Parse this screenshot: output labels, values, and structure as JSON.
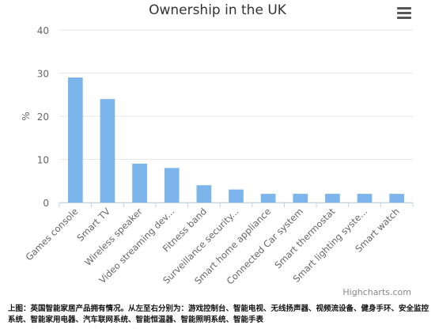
{
  "chart_data": {
    "type": "bar",
    "title": "Ownership in the UK",
    "ylabel": "%",
    "xlabel": "",
    "ylim": [
      0,
      40
    ],
    "yticks": [
      0,
      10,
      20,
      30,
      40
    ],
    "grid": true,
    "legend": "none",
    "color": "#7cb5ec",
    "categories": [
      "Games console",
      "Smart TV",
      "Wireless speaker",
      "Video streaming dev...",
      "Fitness band",
      "Surveillance security...",
      "Smart home appliance",
      "Connected Car system",
      "Smart thermostat",
      "Smart lighting syste...",
      "Smart watch"
    ],
    "values": [
      29,
      24,
      9,
      8,
      4,
      3,
      2,
      2,
      2,
      2,
      2
    ]
  },
  "credits": "Highcharts.com",
  "caption": "上图：英国智能家居产品拥有情况。从左至右分别为：游戏控制台、智能电视、无线扬声器、视频流设备、健身手环、安全监控系统、智能家用电器、汽车联网系统、智能恒温器、智能照明系统、智能手表"
}
